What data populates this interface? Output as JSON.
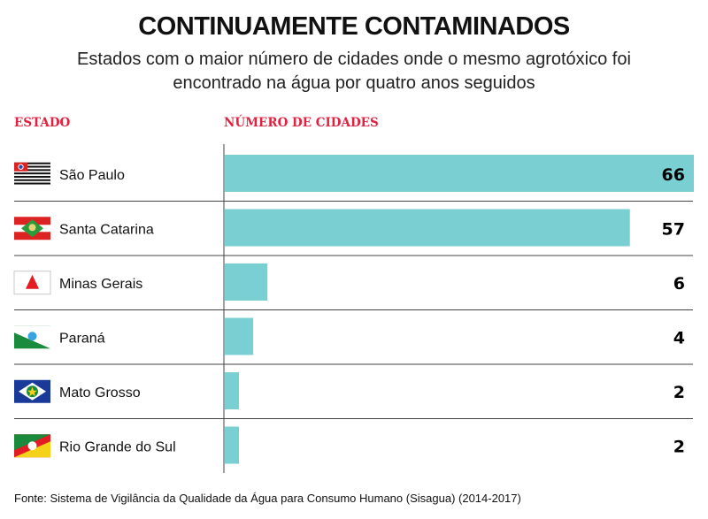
{
  "header": {
    "title": "CONTINUAMENTE CONTAMINADOS",
    "subtitle_line1": "Estados com o maior número de cidades onde o mesmo agrotóxico foi",
    "subtitle_line2": "encontrado na água por quatro anos seguidos"
  },
  "columns": {
    "state": "ESTADO",
    "count": "NÚMERO DE CIDADES"
  },
  "colors": {
    "bar": "#7acfd2",
    "header_accent": "#e3213f"
  },
  "source": "Fonte: Sistema de Vigilância da Qualidade da Água para Consumo Humano (Sisagua) (2014-2017)",
  "chart_data": {
    "type": "bar",
    "orientation": "horizontal",
    "title": "CONTINUAMENTE CONTAMINADOS",
    "subtitle": "Estados com o maior número de cidades onde o mesmo agrotóxico foi encontrado na água por quatro anos seguidos",
    "xlabel": "NÚMERO DE CIDADES",
    "ylabel": "ESTADO",
    "categories": [
      "São Paulo",
      "Santa Catarina",
      "Minas Gerais",
      "Paraná",
      "Mato Grosso",
      "Rio Grande do Sul"
    ],
    "flags": [
      "sp-flag-icon",
      "sc-flag-icon",
      "mg-flag-icon",
      "pr-flag-icon",
      "mt-flag-icon",
      "rs-flag-icon"
    ],
    "values": [
      66,
      57,
      6,
      4,
      2,
      2
    ],
    "value_labels": [
      "66",
      "57",
      "6",
      "4",
      "2",
      "2"
    ],
    "xlim": [
      0,
      66
    ],
    "grid": false,
    "legend": "none"
  }
}
